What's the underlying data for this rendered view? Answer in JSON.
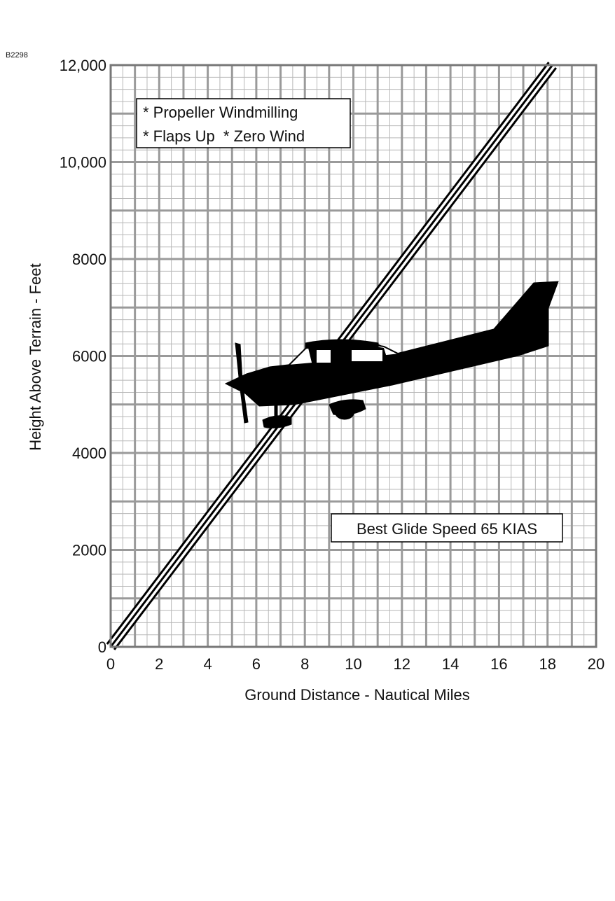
{
  "figure_id": "B2298",
  "chart_data": {
    "type": "line",
    "title": "",
    "xlabel": "Ground Distance - Nautical Miles",
    "ylabel": "Height Above Terrain - Feet",
    "xlim": [
      0,
      20
    ],
    "ylim": [
      0,
      12000
    ],
    "x_ticks": [
      0,
      2,
      4,
      6,
      8,
      10,
      12,
      14,
      16,
      18,
      20
    ],
    "x_tick_labels": [
      "0",
      "2",
      "4",
      "6",
      "8",
      "10",
      "12",
      "14",
      "16",
      "18",
      "20"
    ],
    "y_ticks": [
      0,
      2000,
      4000,
      6000,
      8000,
      10000,
      12000
    ],
    "y_tick_labels": [
      "0",
      "2000",
      "4000",
      "6000",
      "8000",
      "10,000",
      "12,000"
    ],
    "grid": true,
    "series": [
      {
        "x": [
          0,
          18.2
        ],
        "y": [
          0,
          12000
        ]
      }
    ],
    "annotations": {
      "conditions": [
        "* Propeller Windmilling",
        "* Flaps Up  * Zero Wind"
      ],
      "speed_note": "Best Glide Speed 65 KIAS"
    },
    "illustration": "airplane-silhouette"
  },
  "colors": {
    "major_grid": "#9a9a9a",
    "minor_grid": "#b8b8b8",
    "line": "#000000",
    "silhouette": "#000000"
  }
}
